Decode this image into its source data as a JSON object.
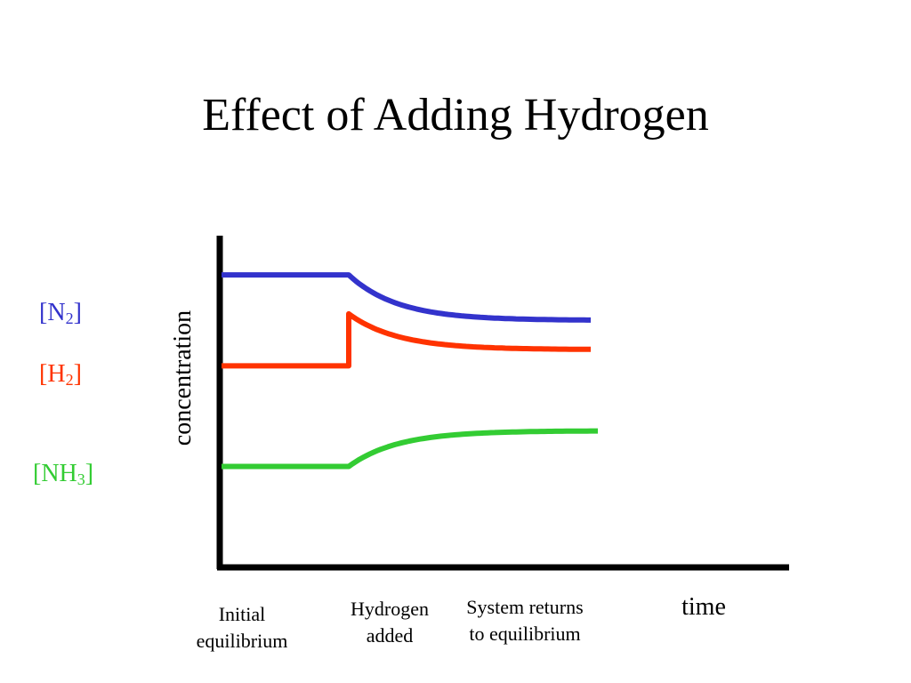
{
  "slide": {
    "title": "Effect of Adding Hydrogen"
  },
  "chart_data": {
    "type": "line",
    "ylabel": "concentration",
    "xlabel": "time",
    "phase_labels": [
      [
        "Initial",
        "equilibrium"
      ],
      [
        "Hydrogen",
        "added"
      ],
      [
        "System returns",
        "to equilibrium"
      ]
    ],
    "series": [
      {
        "species": "N",
        "subscript": "2",
        "color": "#3333cc",
        "initial": 0.89,
        "after_addition": 0.89,
        "final": 0.75
      },
      {
        "species": "H",
        "subscript": "2",
        "color": "#ff3300",
        "initial": 0.61,
        "after_addition": 0.77,
        "final": 0.66
      },
      {
        "species": "NH",
        "subscript": "3",
        "color": "#33cc33",
        "initial": 0.3,
        "after_addition": 0.3,
        "final": 0.41
      }
    ],
    "grid": false,
    "legend": "left"
  }
}
